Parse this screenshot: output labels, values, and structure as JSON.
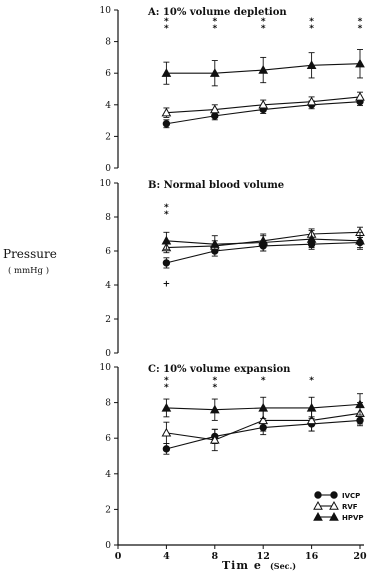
{
  "chart_data": [
    {
      "type": "line",
      "title": "A: 10% volume depletion",
      "x": [
        4,
        8,
        12,
        16,
        20
      ],
      "ylim": [
        0,
        10
      ],
      "yticks": [
        "0",
        "2",
        "4",
        "6",
        "8",
        "10"
      ],
      "series": [
        {
          "name": "IVCP",
          "marker": "filled-circle",
          "values": [
            2.8,
            3.3,
            3.7,
            4.0,
            4.2
          ],
          "err": [
            0.25,
            0.25,
            0.25,
            0.25,
            0.25
          ]
        },
        {
          "name": "RVF",
          "marker": "open-triangle",
          "values": [
            3.5,
            3.7,
            4.0,
            4.2,
            4.5
          ],
          "err": [
            0.3,
            0.3,
            0.3,
            0.3,
            0.3
          ]
        },
        {
          "name": "HPVP",
          "marker": "filled-triangle",
          "values": [
            6.0,
            6.0,
            6.2,
            6.5,
            6.6
          ],
          "err": [
            0.7,
            0.8,
            0.8,
            0.8,
            0.9
          ]
        }
      ],
      "annotations": [
        {
          "x": 4,
          "text": "*",
          "rows": 2
        },
        {
          "x": 8,
          "text": "*",
          "rows": 2
        },
        {
          "x": 12,
          "text": "*",
          "rows": 2
        },
        {
          "x": 16,
          "text": "*",
          "rows": 2
        },
        {
          "x": 20,
          "text": "*",
          "rows": 2
        }
      ]
    },
    {
      "type": "line",
      "title": "B: Normal blood volume",
      "x": [
        4,
        8,
        12,
        16,
        20
      ],
      "ylim": [
        0,
        10
      ],
      "yticks": [
        "0",
        "2",
        "4",
        "6",
        "8",
        "10"
      ],
      "series": [
        {
          "name": "IVCP",
          "marker": "filled-circle",
          "values": [
            5.3,
            6.0,
            6.3,
            6.4,
            6.5
          ],
          "err": [
            0.3,
            0.3,
            0.3,
            0.3,
            0.3
          ]
        },
        {
          "name": "RVF",
          "marker": "open-triangle",
          "values": [
            6.2,
            6.3,
            6.6,
            7.0,
            7.1
          ],
          "err": [
            0.3,
            0.3,
            0.3,
            0.3,
            0.3
          ]
        },
        {
          "name": "HPVP",
          "marker": "filled-triangle",
          "values": [
            6.6,
            6.4,
            6.5,
            6.7,
            6.6
          ],
          "err": [
            0.5,
            0.5,
            0.5,
            0.5,
            0.5
          ]
        }
      ],
      "annotations": [
        {
          "x": 4,
          "text": "*",
          "rows": 2
        },
        {
          "x": 4,
          "text": "+",
          "rows": 1,
          "low": true
        }
      ]
    },
    {
      "type": "line",
      "title": "C: 10% volume expansion",
      "x": [
        4,
        8,
        12,
        16,
        20
      ],
      "ylim": [
        0,
        10
      ],
      "yticks": [
        "0",
        "2",
        "4",
        "6",
        "8",
        "10"
      ],
      "xticks": [
        "0",
        "4",
        "8",
        "12",
        "16",
        "20"
      ],
      "series": [
        {
          "name": "IVCP",
          "marker": "filled-circle",
          "values": [
            5.4,
            6.1,
            6.6,
            6.8,
            7.0
          ],
          "err": [
            0.3,
            0.4,
            0.4,
            0.4,
            0.3
          ]
        },
        {
          "name": "RVF",
          "marker": "open-triangle",
          "values": [
            6.3,
            5.9,
            7.0,
            7.0,
            7.4
          ],
          "err": [
            0.6,
            0.6,
            0.6,
            0.6,
            0.6
          ]
        },
        {
          "name": "HPVP",
          "marker": "filled-triangle",
          "values": [
            7.7,
            7.6,
            7.7,
            7.7,
            7.9
          ],
          "err": [
            0.5,
            0.6,
            0.6,
            0.6,
            0.6
          ]
        }
      ],
      "annotations": [
        {
          "x": 4,
          "text": "*",
          "rows": 2
        },
        {
          "x": 8,
          "text": "*",
          "rows": 2
        },
        {
          "x": 12,
          "text": "*",
          "rows": 1
        },
        {
          "x": 16,
          "text": "*",
          "rows": 1
        }
      ],
      "legend": {
        "placement": "bottom-right",
        "entries": [
          {
            "label": "IVCP",
            "marker": "filled-circle"
          },
          {
            "label": "RVF",
            "marker": "open-triangle"
          },
          {
            "label": "HPVP",
            "marker": "filled-triangle"
          }
        ]
      }
    }
  ],
  "ylabel": "Pressure",
  "yunit": "( mmHg )",
  "xlabel": "Tim e",
  "xunit": "(Sec.)"
}
